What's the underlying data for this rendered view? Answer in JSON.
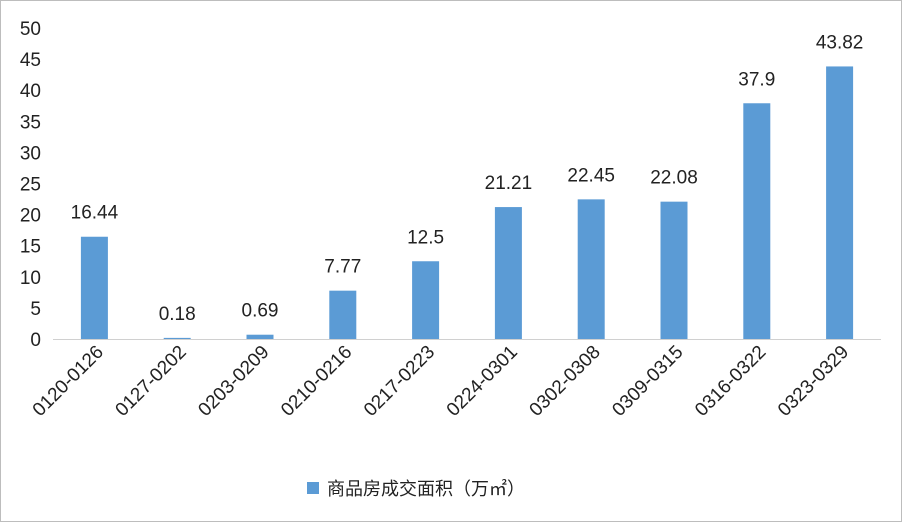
{
  "chart_data": {
    "type": "bar",
    "categories": [
      "0120-0126",
      "0127-0202",
      "0203-0209",
      "0210-0216",
      "0217-0223",
      "0224-0301",
      "0302-0308",
      "0309-0315",
      "0316-0322",
      "0323-0329"
    ],
    "series": [
      {
        "name": "商品房成交面积（万㎡）",
        "values": [
          16.44,
          0.18,
          0.69,
          7.77,
          12.5,
          21.21,
          22.45,
          22.08,
          37.9,
          43.82
        ],
        "labels": [
          "16.44",
          "0.18",
          "0.69",
          "7.77",
          "12.5",
          "21.21",
          "22.45",
          "22.08",
          "37.9",
          "43.82"
        ],
        "color": "#5b9bd5"
      }
    ],
    "y_ticks": [
      "0",
      "5",
      "10",
      "15",
      "20",
      "25",
      "30",
      "35",
      "40",
      "45",
      "50"
    ],
    "ylim": [
      0,
      50
    ],
    "title": "",
    "xlabel": "",
    "ylabel": "",
    "grid": false,
    "legend": {
      "position": "bottom"
    }
  }
}
